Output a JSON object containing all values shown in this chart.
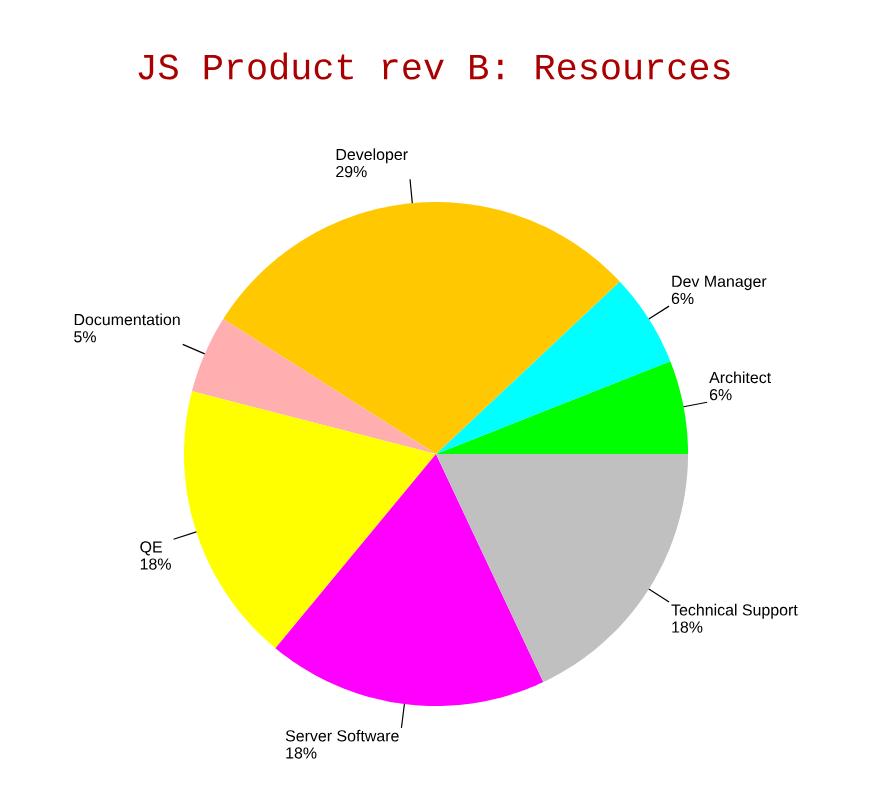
{
  "chart_data": {
    "type": "pie",
    "title": "JS Product rev B: Resources",
    "categories": [
      "Architect",
      "Dev Manager",
      "Developer",
      "Documentation",
      "QE",
      "Server Software",
      "Technical Support"
    ],
    "values": [
      6,
      6,
      29,
      5,
      18,
      18,
      18
    ],
    "value_labels": [
      "6%",
      "6%",
      "29%",
      "5%",
      "18%",
      "18%",
      "18%"
    ],
    "colors": [
      "#00ff00",
      "#00ffff",
      "#ffc800",
      "#ffafaf",
      "#ffff00",
      "#ff00ff",
      "#c0c0c0"
    ]
  }
}
